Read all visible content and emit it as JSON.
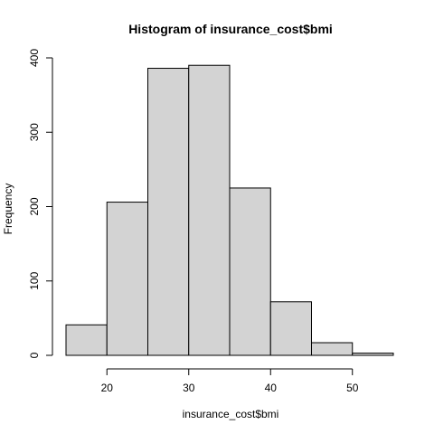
{
  "chart_data": {
    "type": "bar",
    "title": "Histogram of insurance_cost$bmi",
    "xlabel": "insurance_cost$bmi",
    "ylabel": "Frequency",
    "bins": [
      {
        "start": 15,
        "end": 20,
        "count": 41
      },
      {
        "start": 20,
        "end": 25,
        "count": 206
      },
      {
        "start": 25,
        "end": 30,
        "count": 386
      },
      {
        "start": 30,
        "end": 35,
        "count": 390
      },
      {
        "start": 35,
        "end": 40,
        "count": 225
      },
      {
        "start": 40,
        "end": 45,
        "count": 72
      },
      {
        "start": 45,
        "end": 50,
        "count": 17
      },
      {
        "start": 50,
        "end": 55,
        "count": 3
      }
    ],
    "xlim": [
      15,
      55
    ],
    "ylim": [
      0,
      400
    ],
    "x_ticks": [
      20,
      30,
      40,
      50
    ],
    "y_ticks": [
      0,
      100,
      200,
      300,
      400
    ],
    "bar_fill": "#d3d3d3",
    "bar_stroke": "#000000",
    "grid": false,
    "legend": "none"
  }
}
